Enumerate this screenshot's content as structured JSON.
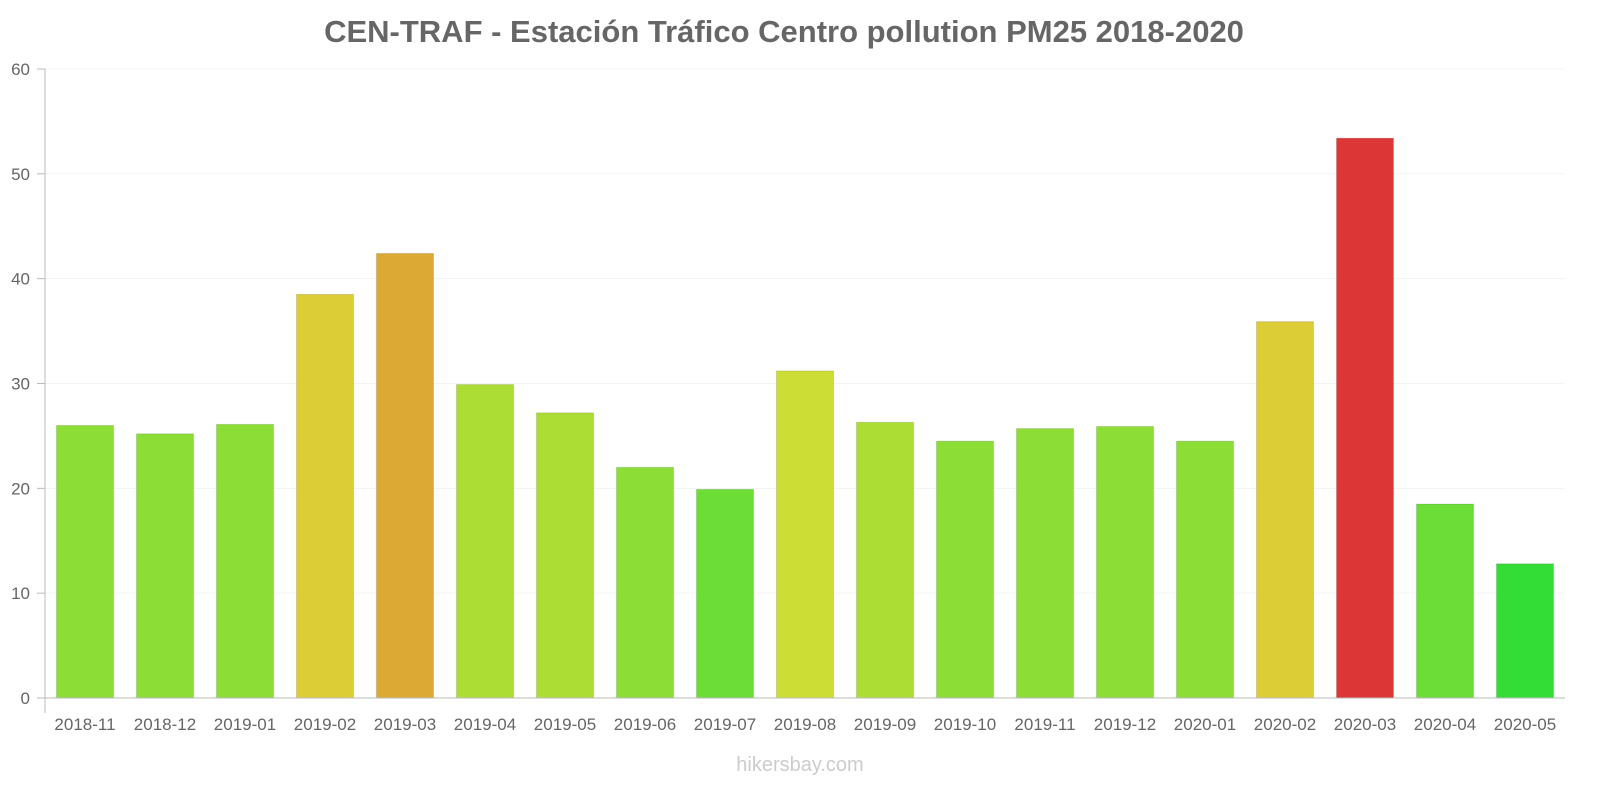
{
  "chart_data": {
    "type": "bar",
    "title": "CEN-TRAF - Estación Tráfico Centro pollution PM25 2018-2020",
    "xlabel": "",
    "ylabel": "",
    "ylim": [
      0,
      60
    ],
    "yticks": [
      0,
      10,
      20,
      30,
      40,
      50,
      60
    ],
    "grid": true,
    "categories": [
      "2018-11",
      "2018-12",
      "2019-01",
      "2019-02",
      "2019-03",
      "2019-04",
      "2019-05",
      "2019-06",
      "2019-07",
      "2019-08",
      "2019-09",
      "2019-10",
      "2019-11",
      "2019-12",
      "2020-01",
      "2020-02",
      "2020-03",
      "2020-04",
      "2020-05"
    ],
    "values": [
      26.0,
      25.2,
      26.1,
      38.5,
      42.4,
      29.9,
      27.2,
      22.0,
      19.9,
      31.2,
      26.3,
      24.5,
      25.7,
      25.9,
      24.5,
      35.9,
      53.4,
      18.5,
      12.8
    ],
    "colors": [
      "#8cdd36",
      "#8cdd36",
      "#8cdd36",
      "#dccc35",
      "#dca935",
      "#acdd35",
      "#acdd35",
      "#8cdd36",
      "#6bdd36",
      "#ccdd35",
      "#acdd35",
      "#8cdd36",
      "#8cdd36",
      "#8cdd36",
      "#8cdd36",
      "#dccc35",
      "#dc3636",
      "#6bdd36",
      "#33dd36"
    ]
  },
  "footer": "hikersbay.com"
}
